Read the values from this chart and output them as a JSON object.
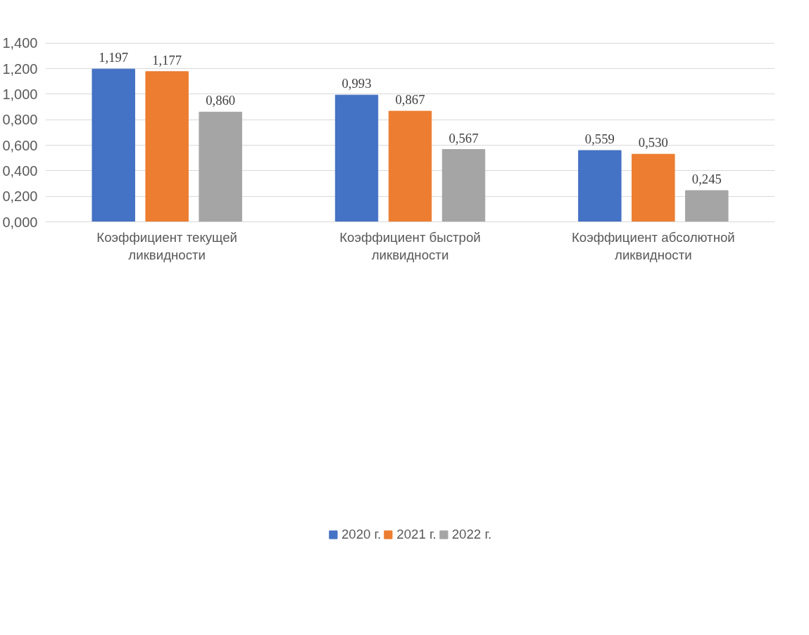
{
  "chart_data": {
    "type": "bar",
    "categories": [
      "Коэффициент текущей ликвидности",
      "Коэффициент быстрой ликвидности",
      "Коэффициент абсолютной ликвидности"
    ],
    "series": [
      {
        "name": "2020 г.",
        "color": "#4472c4",
        "values": [
          1.197,
          0.993,
          0.559
        ],
        "value_labels": [
          "1,197",
          "0,993",
          "0,559"
        ]
      },
      {
        "name": "2021 г.",
        "color": "#ed7d31",
        "values": [
          1.177,
          0.867,
          0.53
        ],
        "value_labels": [
          "1,177",
          "0,867",
          "0,530"
        ]
      },
      {
        "name": "2022 г.",
        "color": "#a5a5a5",
        "values": [
          0.86,
          0.567,
          0.245
        ],
        "value_labels": [
          "0,860",
          "0,567",
          "0,245"
        ]
      }
    ],
    "ylim": [
      0,
      1.4
    ],
    "yticks": [
      {
        "value": 0,
        "label": "0,000"
      },
      {
        "value": 0.2,
        "label": "0,200"
      },
      {
        "value": 0.4,
        "label": "0,400"
      },
      {
        "value": 0.6,
        "label": "0,600"
      },
      {
        "value": 0.8,
        "label": "0,800"
      },
      {
        "value": 1.0,
        "label": "1,000"
      },
      {
        "value": 1.2,
        "label": "1,200"
      },
      {
        "value": 1.4,
        "label": "1,400"
      }
    ],
    "grid": "y",
    "legend": "bottom"
  }
}
